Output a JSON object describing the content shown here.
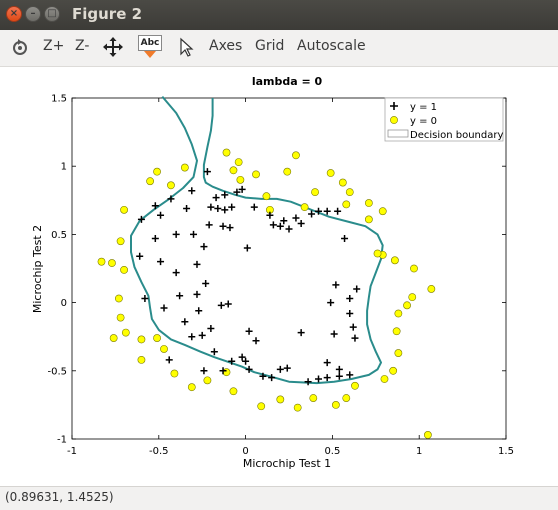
{
  "window": {
    "title": "Figure 2"
  },
  "toolbar": {
    "zoom_in": "Z+",
    "zoom_out": "Z-",
    "text_tool_icon_label": "Abc",
    "axes": "Axes",
    "grid": "Grid",
    "autoscale": "Autoscale"
  },
  "status": {
    "coords": "(0.89631, 1.4525)"
  },
  "chart_data": {
    "type": "scatter",
    "title": "lambda = 0",
    "xlabel": "Microchip Test 1",
    "ylabel": "Microchip Test 2",
    "xlim": [
      -1,
      1.5
    ],
    "ylim": [
      -1,
      1.5
    ],
    "xticks": [
      "-1",
      "-0.5",
      "0",
      "0.5",
      "1",
      "1.5"
    ],
    "yticks": [
      "-1",
      "-0.5",
      "0",
      "0.5",
      "1",
      "1.5"
    ],
    "grid": false,
    "legend_position": "top-right",
    "colors": {
      "positive": "#000000",
      "negative": "#ffff00",
      "negative_edge": "#7a7a00",
      "boundary": "#2a8c8c"
    },
    "series": [
      {
        "name": "y = 1",
        "marker": "plus",
        "points": [
          [
            -0.05,
            0.81
          ],
          [
            -0.12,
            0.79
          ],
          [
            -0.17,
            0.77
          ],
          [
            -0.31,
            0.82
          ],
          [
            -0.22,
            0.96
          ],
          [
            -0.02,
            0.83
          ],
          [
            -0.43,
            0.76
          ],
          [
            -0.52,
            0.71
          ],
          [
            -0.6,
            0.61
          ],
          [
            -0.49,
            0.64
          ],
          [
            -0.34,
            0.69
          ],
          [
            -0.2,
            0.7
          ],
          [
            -0.16,
            0.69
          ],
          [
            -0.12,
            0.68
          ],
          [
            -0.08,
            0.7
          ],
          [
            0.05,
            0.7
          ],
          [
            0.14,
            0.64
          ],
          [
            0.22,
            0.6
          ],
          [
            0.16,
            0.57
          ],
          [
            0.2,
            0.56
          ],
          [
            0.25,
            0.54
          ],
          [
            0.32,
            0.58
          ],
          [
            0.38,
            0.65
          ],
          [
            0.47,
            0.67
          ],
          [
            0.53,
            0.67
          ],
          [
            0.57,
            0.47
          ],
          [
            -0.21,
            0.57
          ],
          [
            -0.13,
            0.56
          ],
          [
            -0.09,
            0.55
          ],
          [
            -0.3,
            0.5
          ],
          [
            -0.4,
            0.5
          ],
          [
            -0.52,
            0.47
          ],
          [
            -0.61,
            0.34
          ],
          [
            -0.49,
            0.3
          ],
          [
            -0.4,
            0.22
          ],
          [
            -0.28,
            0.28
          ],
          [
            -0.24,
            0.41
          ],
          [
            0.01,
            0.4
          ],
          [
            -0.38,
            0.05
          ],
          [
            -0.27,
            -0.06
          ],
          [
            -0.28,
            0.06
          ],
          [
            -0.58,
            0.03
          ],
          [
            -0.47,
            -0.04
          ],
          [
            -0.35,
            -0.14
          ],
          [
            -0.25,
            -0.24
          ],
          [
            -0.2,
            -0.19
          ],
          [
            -0.23,
            0.14
          ],
          [
            -0.31,
            -0.25
          ],
          [
            -0.18,
            -0.36
          ],
          [
            -0.08,
            -0.43
          ],
          [
            0.0,
            -0.43
          ],
          [
            0.06,
            -0.28
          ],
          [
            -0.02,
            -0.4
          ],
          [
            0.1,
            -0.54
          ],
          [
            0.15,
            -0.55
          ],
          [
            0.2,
            -0.49
          ],
          [
            0.36,
            -0.58
          ],
          [
            0.42,
            -0.56
          ],
          [
            0.47,
            -0.55
          ],
          [
            0.54,
            -0.54
          ],
          [
            0.6,
            -0.53
          ],
          [
            0.47,
            -0.44
          ],
          [
            0.51,
            -0.23
          ],
          [
            0.63,
            -0.26
          ],
          [
            0.62,
            -0.18
          ],
          [
            0.6,
            -0.08
          ],
          [
            0.52,
            0.13
          ],
          [
            0.64,
            0.1
          ],
          [
            0.6,
            0.03
          ],
          [
            0.49,
            0.0
          ],
          [
            0.54,
            -0.49
          ],
          [
            -0.24,
            -0.5
          ],
          [
            -0.13,
            -0.5
          ],
          [
            0.02,
            -0.49
          ],
          [
            0.24,
            -0.48
          ],
          [
            -0.1,
            -0.01
          ],
          [
            -0.14,
            -0.02
          ],
          [
            0.02,
            -0.21
          ],
          [
            0.32,
            -0.22
          ],
          [
            0.29,
            0.62
          ],
          [
            -0.44,
            -0.42
          ],
          [
            0.42,
            0.67
          ]
        ]
      },
      {
        "name": "y = 0",
        "marker": "circle",
        "points": [
          [
            -0.35,
            0.99
          ],
          [
            -0.43,
            0.86
          ],
          [
            -0.51,
            0.96
          ],
          [
            -0.55,
            0.89
          ],
          [
            -0.7,
            0.68
          ],
          [
            -0.72,
            0.45
          ],
          [
            -0.7,
            0.24
          ],
          [
            -0.73,
            0.03
          ],
          [
            -0.77,
            0.29
          ],
          [
            -0.83,
            0.3
          ],
          [
            -0.72,
            -0.11
          ],
          [
            -0.69,
            -0.22
          ],
          [
            -0.76,
            -0.26
          ],
          [
            -0.6,
            -0.27
          ],
          [
            -0.6,
            -0.42
          ],
          [
            -0.51,
            -0.26
          ],
          [
            -0.47,
            -0.34
          ],
          [
            -0.41,
            -0.52
          ],
          [
            -0.31,
            -0.62
          ],
          [
            -0.22,
            -0.57
          ],
          [
            -0.11,
            -0.51
          ],
          [
            -0.07,
            -0.65
          ],
          [
            0.09,
            -0.76
          ],
          [
            0.2,
            -0.71
          ],
          [
            0.3,
            -0.77
          ],
          [
            0.39,
            -0.7
          ],
          [
            0.52,
            -0.75
          ],
          [
            0.58,
            -0.7
          ],
          [
            0.63,
            -0.61
          ],
          [
            0.8,
            -0.56
          ],
          [
            0.85,
            -0.5
          ],
          [
            0.88,
            -0.37
          ],
          [
            0.87,
            -0.21
          ],
          [
            0.88,
            -0.08
          ],
          [
            0.93,
            -0.02
          ],
          [
            0.96,
            0.04
          ],
          [
            1.07,
            0.1
          ],
          [
            0.97,
            0.25
          ],
          [
            0.86,
            0.31
          ],
          [
            0.79,
            0.35
          ],
          [
            0.76,
            0.36
          ],
          [
            0.71,
            0.61
          ],
          [
            0.79,
            0.67
          ],
          [
            0.71,
            0.73
          ],
          [
            0.6,
            0.81
          ],
          [
            0.58,
            0.72
          ],
          [
            0.56,
            0.88
          ],
          [
            0.49,
            0.95
          ],
          [
            0.4,
            0.81
          ],
          [
            0.34,
            0.7
          ],
          [
            0.29,
            1.08
          ],
          [
            0.24,
            0.96
          ],
          [
            0.12,
            0.78
          ],
          [
            0.06,
            0.94
          ],
          [
            -0.07,
            0.97
          ],
          [
            -0.11,
            1.1
          ],
          [
            -0.03,
            0.9
          ],
          [
            -0.04,
            1.03
          ],
          [
            0.14,
            0.68
          ],
          [
            1.05,
            -0.97
          ]
        ]
      }
    ],
    "decision_boundary": {
      "name": "Decision boundary",
      "path": [
        [
          -0.48,
          1.51
        ],
        [
          -0.4,
          1.39
        ],
        [
          -0.35,
          1.28
        ],
        [
          -0.31,
          1.16
        ],
        [
          -0.28,
          1.04
        ],
        [
          -0.3,
          0.92
        ],
        [
          -0.36,
          0.84
        ],
        [
          -0.44,
          0.76
        ],
        [
          -0.53,
          0.68
        ],
        [
          -0.61,
          0.6
        ],
        [
          -0.66,
          0.49
        ],
        [
          -0.66,
          0.37
        ],
        [
          -0.64,
          0.26
        ],
        [
          -0.6,
          0.15
        ],
        [
          -0.56,
          0.05
        ],
        [
          -0.55,
          -0.04
        ],
        [
          -0.54,
          -0.12
        ],
        [
          -0.5,
          -0.2
        ],
        [
          -0.43,
          -0.27
        ],
        [
          -0.35,
          -0.31
        ],
        [
          -0.26,
          -0.36
        ],
        [
          -0.18,
          -0.4
        ],
        [
          -0.11,
          -0.43
        ],
        [
          -0.02,
          -0.47
        ],
        [
          0.05,
          -0.51
        ],
        [
          0.14,
          -0.54
        ],
        [
          0.25,
          -0.58
        ],
        [
          0.41,
          -0.59
        ],
        [
          0.51,
          -0.58
        ],
        [
          0.61,
          -0.56
        ],
        [
          0.71,
          -0.53
        ],
        [
          0.76,
          -0.49
        ],
        [
          0.78,
          -0.44
        ],
        [
          0.75,
          -0.36
        ],
        [
          0.72,
          -0.27
        ],
        [
          0.7,
          -0.16
        ],
        [
          0.7,
          -0.06
        ],
        [
          0.71,
          0.04
        ],
        [
          0.72,
          0.12
        ],
        [
          0.75,
          0.22
        ],
        [
          0.78,
          0.32
        ],
        [
          0.79,
          0.42
        ],
        [
          0.76,
          0.5
        ],
        [
          0.69,
          0.56
        ],
        [
          0.6,
          0.59
        ],
        [
          0.48,
          0.63
        ],
        [
          0.36,
          0.69
        ],
        [
          0.26,
          0.74
        ],
        [
          0.18,
          0.76
        ],
        [
          0.09,
          0.76
        ],
        [
          0.0,
          0.77
        ],
        [
          -0.06,
          0.79
        ],
        [
          -0.13,
          0.82
        ],
        [
          -0.19,
          0.85
        ],
        [
          -0.23,
          0.88
        ],
        [
          -0.24,
          0.92
        ],
        [
          -0.24,
          1.01
        ],
        [
          -0.22,
          1.14
        ],
        [
          -0.2,
          1.26
        ],
        [
          -0.19,
          1.37
        ],
        [
          -0.19,
          1.5
        ]
      ]
    }
  }
}
